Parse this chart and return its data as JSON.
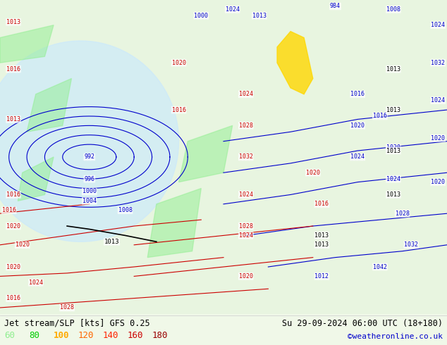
{
  "title_left": "Jet stream/SLP [kts] GFS 0.25",
  "title_right": "Su 29-09-2024 06:00 UTC (18+180)",
  "credit": "©weatheronline.co.uk",
  "legend_values": [
    "60",
    "80",
    "100",
    "120",
    "140",
    "160",
    "180"
  ],
  "legend_colors": [
    "#90ee90",
    "#00cc00",
    "#ffaa00",
    "#ff6600",
    "#ff2200",
    "#cc0000",
    "#990000"
  ],
  "bg_color": "#f0f8e8",
  "fig_width": 6.34,
  "fig_height": 4.9,
  "dpi": 100,
  "bottom_bar_color": "#ffffff",
  "title_color": "#000000",
  "credit_color": "#0000cc"
}
